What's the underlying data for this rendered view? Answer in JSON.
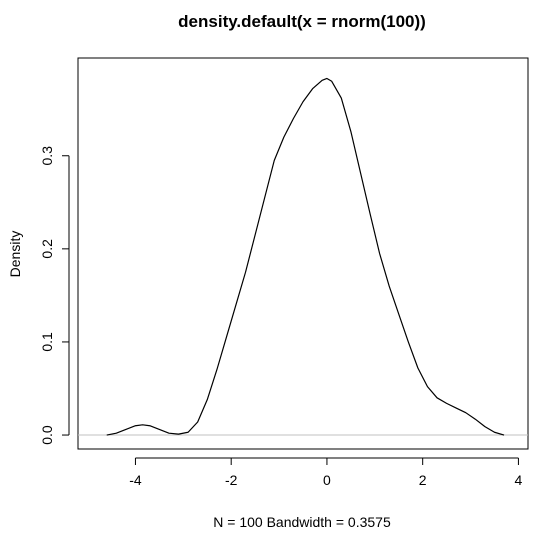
{
  "chart_data": {
    "type": "line",
    "title": "density.default(x = rnorm(100))",
    "xlabel": "N = 100   Bandwidth = 0.3575",
    "ylabel": "Density",
    "xlim": [
      -5.2,
      4.2
    ],
    "ylim": [
      -0.015,
      0.405
    ],
    "x_ticks": [
      -4,
      -2,
      0,
      2,
      4
    ],
    "y_ticks": [
      0.0,
      0.1,
      0.2,
      0.3
    ],
    "x_tick_labels": [
      "-4",
      "-2",
      "0",
      "2",
      "4"
    ],
    "y_tick_labels": [
      "0.0",
      "0.1",
      "0.2",
      "0.3"
    ],
    "baseline_y": 0,
    "baseline_color": "#c0c0c0",
    "line_color": "#000000",
    "grid": false,
    "series": [
      {
        "x": [
          -4.6,
          -4.4,
          -4.2,
          -4.0,
          -3.85,
          -3.7,
          -3.5,
          -3.3,
          -3.1,
          -2.9,
          -2.7,
          -2.5,
          -2.3,
          -2.1,
          -1.9,
          -1.7,
          -1.5,
          -1.3,
          -1.1,
          -0.9,
          -0.7,
          -0.5,
          -0.3,
          -0.1,
          0.0,
          0.1,
          0.3,
          0.5,
          0.7,
          0.9,
          1.1,
          1.3,
          1.5,
          1.7,
          1.9,
          2.1,
          2.3,
          2.5,
          2.7,
          2.9,
          3.1,
          3.3,
          3.5,
          3.7
        ],
        "y": [
          0.0,
          0.002,
          0.006,
          0.01,
          0.011,
          0.01,
          0.006,
          0.002,
          0.001,
          0.003,
          0.014,
          0.038,
          0.07,
          0.105,
          0.14,
          0.175,
          0.215,
          0.255,
          0.295,
          0.32,
          0.34,
          0.358,
          0.372,
          0.381,
          0.383,
          0.38,
          0.362,
          0.326,
          0.282,
          0.238,
          0.195,
          0.16,
          0.13,
          0.1,
          0.072,
          0.052,
          0.04,
          0.034,
          0.029,
          0.024,
          0.017,
          0.009,
          0.003,
          0.0
        ]
      }
    ]
  }
}
